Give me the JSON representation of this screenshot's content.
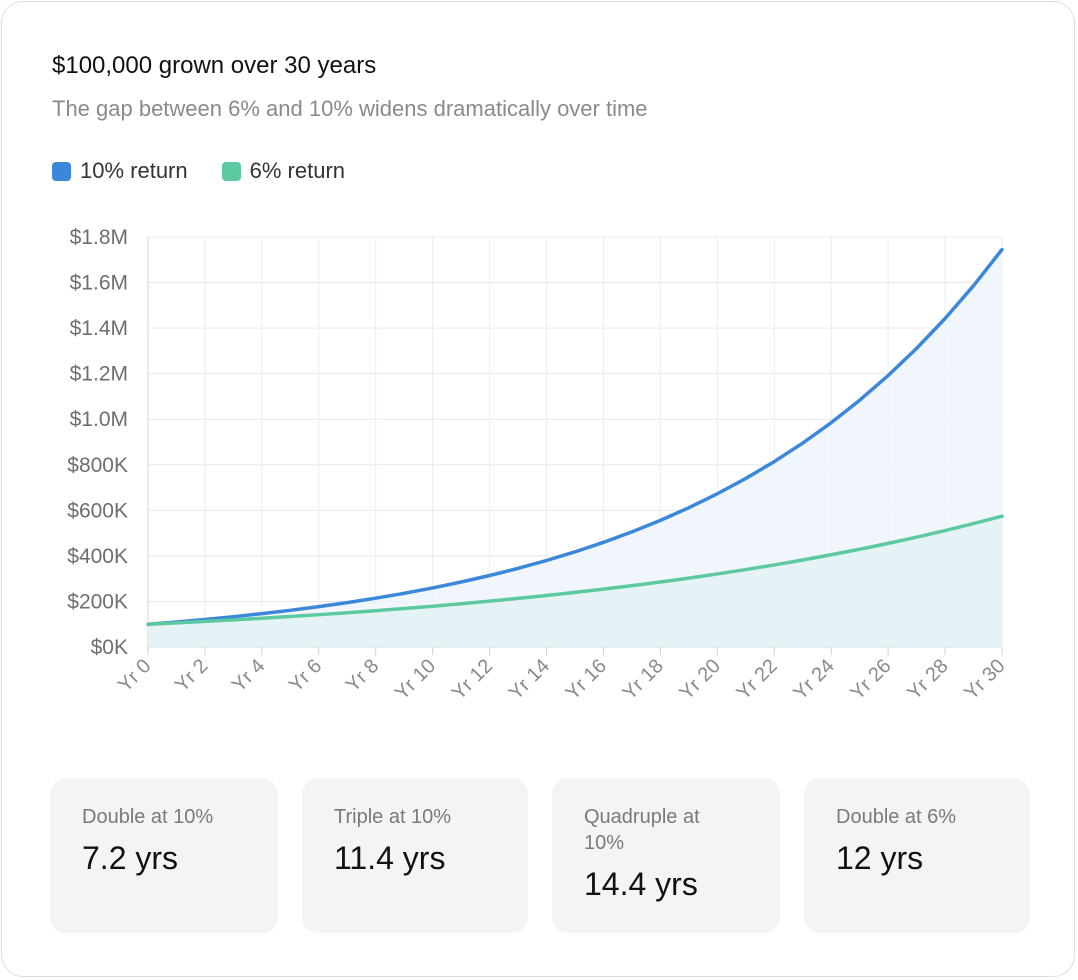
{
  "header": {
    "title": "$100,000 grown over 30 years",
    "subtitle": "The gap between 6% and 10% widens dramatically over time"
  },
  "legend": [
    {
      "label": "10% return",
      "color": "#3b87d9"
    },
    {
      "label": "6% return",
      "color": "#5dc9a1"
    }
  ],
  "chart_data": {
    "type": "area",
    "title": "$100,000 grown over 30 years",
    "xlabel": "",
    "ylabel": "",
    "x": [
      "Yr 0",
      "Yr 1",
      "Yr 2",
      "Yr 3",
      "Yr 4",
      "Yr 5",
      "Yr 6",
      "Yr 7",
      "Yr 8",
      "Yr 9",
      "Yr 10",
      "Yr 11",
      "Yr 12",
      "Yr 13",
      "Yr 14",
      "Yr 15",
      "Yr 16",
      "Yr 17",
      "Yr 18",
      "Yr 19",
      "Yr 20",
      "Yr 21",
      "Yr 22",
      "Yr 23",
      "Yr 24",
      "Yr 25",
      "Yr 26",
      "Yr 27",
      "Yr 28",
      "Yr 29",
      "Yr 30"
    ],
    "x_tick_labels": [
      "Yr 0",
      "Yr 2",
      "Yr 4",
      "Yr 6",
      "Yr 8",
      "Yr 10",
      "Yr 12",
      "Yr 14",
      "Yr 16",
      "Yr 18",
      "Yr 20",
      "Yr 22",
      "Yr 24",
      "Yr 26",
      "Yr 28",
      "Yr 30"
    ],
    "y_tick_labels": [
      "$0K",
      "$200K",
      "$400K",
      "$600K",
      "$800K",
      "$1.0M",
      "$1.2M",
      "$1.4M",
      "$1.6M",
      "$1.8M"
    ],
    "ylim": [
      0,
      1800000
    ],
    "grid": true,
    "legend_position": "top-left",
    "series": [
      {
        "name": "10% return",
        "color": "#3b87d9",
        "fill": "#eef4fc",
        "values": [
          100000,
          110000,
          121000,
          133100,
          146410,
          161051,
          177156,
          194872,
          214359,
          235795,
          259374,
          285312,
          313843,
          345227,
          379750,
          417725,
          459497,
          505447,
          555992,
          611591,
          672750,
          740025,
          814027,
          895430,
          984973,
          1083471,
          1191818,
          1311000,
          1442099,
          1586309,
          1744940
        ]
      },
      {
        "name": "6% return",
        "color": "#5dc9a1",
        "fill": "#e3f2f4",
        "values": [
          100000,
          106000,
          112360,
          119102,
          126248,
          133823,
          141852,
          150363,
          159385,
          168948,
          179085,
          189830,
          201220,
          213293,
          226090,
          239656,
          254035,
          269277,
          285434,
          302560,
          320714,
          339956,
          360354,
          381975,
          404893,
          429187,
          454938,
          482235,
          511169,
          541839,
          574349
        ]
      }
    ]
  },
  "stats": [
    {
      "label": "Double at 10%",
      "value": "7.2 yrs"
    },
    {
      "label": "Triple at 10%",
      "value": "11.4 yrs"
    },
    {
      "label": "Quadruple at 10%",
      "value": "14.4 yrs"
    },
    {
      "label": "Double at 6%",
      "value": "12 yrs"
    }
  ]
}
